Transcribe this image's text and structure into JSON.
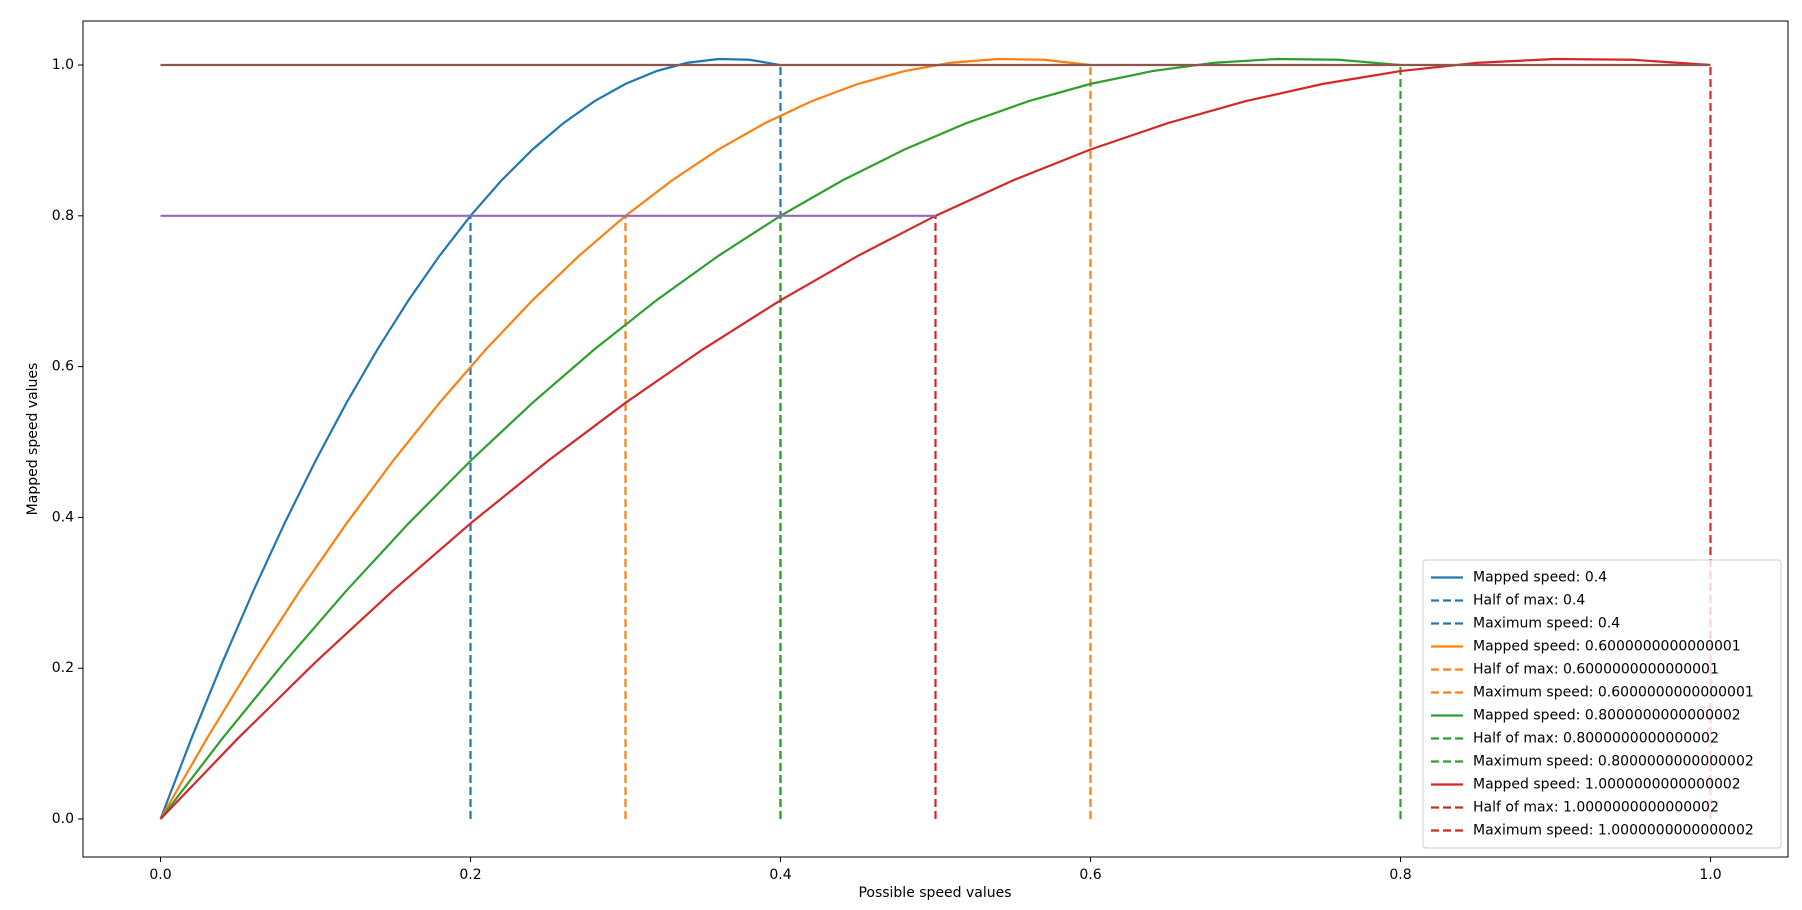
{
  "chart_data": {
    "type": "line",
    "xlabel": "Possible speed values",
    "ylabel": "Mapped speed values",
    "xlim": [
      -0.05,
      1.05
    ],
    "ylim": [
      -0.0504,
      1.0584
    ],
    "xticks": [
      {
        "value": 0,
        "label": "0.0"
      },
      0.2,
      0.4,
      0.6,
      0.8,
      {
        "value": 1,
        "label": "1.0"
      }
    ],
    "yticks": [
      {
        "value": 0,
        "label": "0.0"
      },
      0.2,
      0.4,
      0.6,
      0.8,
      {
        "value": 1,
        "label": "1.0"
      }
    ],
    "legend": "lower right",
    "series": [
      {
        "name": "Mapped speed: 0.4",
        "color": "#1f77b4",
        "dash": false,
        "x": [
          0,
          0.02,
          0.04,
          0.06,
          0.08,
          0.1,
          0.12,
          0.14,
          0.16,
          0.18,
          0.2,
          0.22,
          0.24,
          0.26,
          0.28,
          0.3,
          0.32,
          0.34,
          0.36,
          0.38,
          0.4
        ],
        "values": [
          0,
          0.107,
          0.208,
          0.303,
          0.392,
          0.475,
          0.552,
          0.623,
          0.688,
          0.747,
          0.8,
          0.847,
          0.888,
          0.923,
          0.952,
          0.975,
          0.992,
          1.003,
          1.008,
          1.007,
          1
        ]
      },
      {
        "name": "Half of max: 0.4",
        "color": "#1f77b4",
        "dash": true,
        "x": [
          0.2,
          0.2
        ],
        "values": [
          0,
          0.8
        ]
      },
      {
        "name": "Maximum speed: 0.4",
        "color": "#1f77b4",
        "dash": true,
        "x": [
          0.4,
          0.4
        ],
        "values": [
          0,
          1
        ]
      },
      {
        "name": "Mapped speed: 0.6000000000000001",
        "color": "#ff7f0e",
        "dash": false,
        "x": [
          0,
          0.03,
          0.06,
          0.09,
          0.12,
          0.15,
          0.18,
          0.21,
          0.24,
          0.27,
          0.3,
          0.33,
          0.36,
          0.39,
          0.42,
          0.45,
          0.48,
          0.51,
          0.54,
          0.57,
          0.6
        ],
        "values": [
          0,
          0.107,
          0.208,
          0.303,
          0.392,
          0.475,
          0.552,
          0.623,
          0.688,
          0.747,
          0.8,
          0.847,
          0.888,
          0.923,
          0.952,
          0.975,
          0.992,
          1.003,
          1.008,
          1.007,
          1
        ]
      },
      {
        "name": "Half of max: 0.6000000000000001",
        "color": "#ff7f0e",
        "dash": true,
        "x": [
          0.3,
          0.3
        ],
        "values": [
          0,
          0.8
        ]
      },
      {
        "name": "Maximum speed: 0.6000000000000001",
        "color": "#ff7f0e",
        "dash": true,
        "x": [
          0.6,
          0.6
        ],
        "values": [
          0,
          1
        ]
      },
      {
        "name": "Mapped speed: 0.8000000000000002",
        "color": "#2ca02c",
        "dash": false,
        "x": [
          0,
          0.04,
          0.08,
          0.12,
          0.16,
          0.2,
          0.24,
          0.28,
          0.32,
          0.36,
          0.4,
          0.44,
          0.48,
          0.52,
          0.56,
          0.6,
          0.64,
          0.68,
          0.72,
          0.76,
          0.8
        ],
        "values": [
          0,
          0.107,
          0.208,
          0.303,
          0.392,
          0.475,
          0.552,
          0.623,
          0.688,
          0.747,
          0.8,
          0.847,
          0.888,
          0.923,
          0.952,
          0.975,
          0.992,
          1.003,
          1.008,
          1.007,
          1
        ]
      },
      {
        "name": "Half of max: 0.8000000000000002",
        "color": "#2ca02c",
        "dash": true,
        "x": [
          0.4,
          0.4
        ],
        "values": [
          0,
          0.8
        ]
      },
      {
        "name": "Maximum speed: 0.8000000000000002",
        "color": "#2ca02c",
        "dash": true,
        "x": [
          0.8,
          0.8
        ],
        "values": [
          0,
          1
        ]
      },
      {
        "name": "Mapped speed: 1.0000000000000002",
        "color": "#d62728",
        "dash": false,
        "x": [
          0,
          0.05,
          0.1,
          0.15,
          0.2,
          0.25,
          0.3,
          0.35,
          0.4,
          0.45,
          0.5,
          0.55,
          0.6,
          0.65,
          0.7,
          0.75,
          0.8,
          0.85,
          0.9,
          0.95,
          1
        ],
        "values": [
          0,
          0.107,
          0.208,
          0.303,
          0.392,
          0.475,
          0.552,
          0.623,
          0.688,
          0.747,
          0.8,
          0.847,
          0.888,
          0.923,
          0.952,
          0.975,
          0.992,
          1.003,
          1.008,
          1.007,
          1
        ]
      },
      {
        "name": "Half of max: 1.0000000000000002",
        "color": "#d62728",
        "dash": true,
        "x": [
          0.5,
          0.5
        ],
        "values": [
          0,
          0.8
        ]
      },
      {
        "name": "Maximum speed: 1.0000000000000002",
        "color": "#d62728",
        "dash": true,
        "x": [
          1,
          1
        ],
        "values": [
          0,
          1
        ]
      },
      {
        "color": "#9467bd",
        "dash": false,
        "x": [
          0,
          0.5
        ],
        "values": [
          0.8,
          0.8
        ]
      },
      {
        "color": "#8c564b",
        "dash": false,
        "x": [
          0,
          1
        ],
        "values": [
          1,
          1
        ]
      }
    ]
  }
}
